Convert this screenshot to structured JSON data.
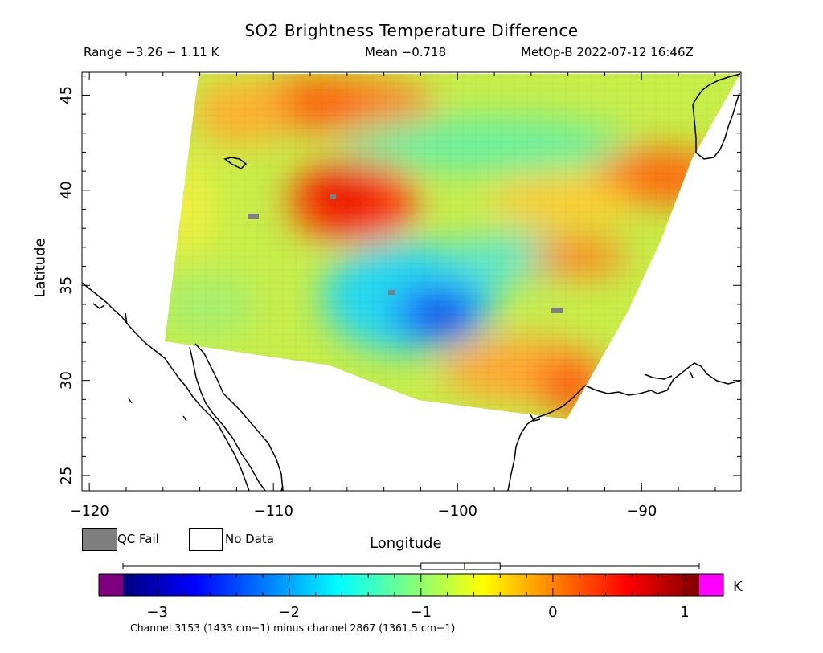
{
  "header": {
    "title": "SO2 Brightness Temperature Difference",
    "range": "Range −3.26 − 1.11 K",
    "mean": "Mean −0.718",
    "satellite_time": "MetOp-B 2022-07-12 16:46Z"
  },
  "axes": {
    "xlabel": "Longitude",
    "ylabel": "Latitude",
    "x_ticks": [
      "−120",
      "−110",
      "−100",
      "−90"
    ],
    "y_ticks": [
      "45",
      "40",
      "35",
      "30",
      "25"
    ],
    "lon_range": [
      -120.4,
      -84.6
    ],
    "lat_range": [
      24.2,
      46.2
    ]
  },
  "legend": {
    "qc_fail_label": "QC Fail",
    "no_data_label": "No Data",
    "qc_fail_color": "#7f7f7f",
    "no_data_color": "#ffffff"
  },
  "colorbar": {
    "unit": "K",
    "ticks": [
      "−3",
      "−2",
      "−1",
      "0",
      "1"
    ],
    "tick_values": [
      -3,
      -2,
      -1,
      0,
      1
    ],
    "range": [
      -3.26,
      1.11
    ],
    "boxplot": {
      "min": -3.26,
      "q1": -1.0,
      "median": -0.67,
      "q3": -0.4,
      "max": 1.11
    },
    "under_color": "#7f007f",
    "over_color": "#ff00ff",
    "stops": [
      "#00007f",
      "#0000ff",
      "#007fff",
      "#00ffff",
      "#7fff7f",
      "#ffff00",
      "#ff7f00",
      "#ff0000",
      "#7f0000"
    ]
  },
  "footer": {
    "channel_note": "Channel 3153 (1433 cm−1) minus channel 2867 (1361.5 cm−1)"
  }
}
